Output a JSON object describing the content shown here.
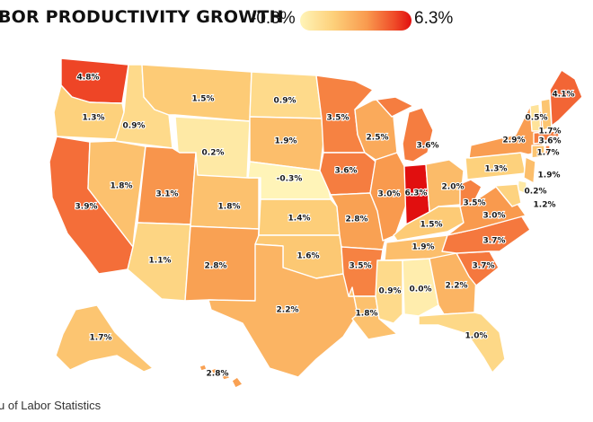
{
  "title": "BOR PRODUCTIVITY GROWTH",
  "legend": {
    "min_label": "-0.3%",
    "max_label": "6.3%",
    "min_value": -0.3,
    "max_value": 6.3,
    "colors": [
      "#fff4b8",
      "#fdd07a",
      "#f99a4e",
      "#ef4a28",
      "#e10f0f"
    ]
  },
  "source": "u of Labor Statistics",
  "map_data": {
    "unit": "%",
    "states": [
      {
        "code": "WA",
        "value": 4.8,
        "label": "4.8%"
      },
      {
        "code": "OR",
        "value": 1.3,
        "label": "1.3%"
      },
      {
        "code": "CA",
        "value": 3.9,
        "label": "3.9%"
      },
      {
        "code": "ID",
        "value": 0.9,
        "label": "0.9%"
      },
      {
        "code": "NV",
        "value": 1.8,
        "label": "1.8%"
      },
      {
        "code": "MT",
        "value": 1.5,
        "label": "1.5%"
      },
      {
        "code": "WY",
        "value": 0.2,
        "label": "0.2%"
      },
      {
        "code": "UT",
        "value": 3.1,
        "label": "3.1%"
      },
      {
        "code": "AZ",
        "value": 1.1,
        "label": "1.1%"
      },
      {
        "code": "CO",
        "value": 1.8,
        "label": "1.8%"
      },
      {
        "code": "NM",
        "value": 2.8,
        "label": "2.8%"
      },
      {
        "code": "ND",
        "value": 0.9,
        "label": "0.9%"
      },
      {
        "code": "SD",
        "value": 1.9,
        "label": "1.9%"
      },
      {
        "code": "NE",
        "value": -0.3,
        "label": "-0.3%"
      },
      {
        "code": "KS",
        "value": 1.4,
        "label": "1.4%"
      },
      {
        "code": "OK",
        "value": 1.6,
        "label": "1.6%"
      },
      {
        "code": "TX",
        "value": 2.2,
        "label": "2.2%"
      },
      {
        "code": "MN",
        "value": 3.5,
        "label": "3.5%"
      },
      {
        "code": "IA",
        "value": 3.6,
        "label": "3.6%"
      },
      {
        "code": "MO",
        "value": 2.8,
        "label": "2.8%"
      },
      {
        "code": "AR",
        "value": 3.5,
        "label": "3.5%"
      },
      {
        "code": "LA",
        "value": 1.8,
        "label": "1.8%"
      },
      {
        "code": "WI",
        "value": 2.5,
        "label": "2.5%"
      },
      {
        "code": "IL",
        "value": 3.0,
        "label": "3.0%"
      },
      {
        "code": "MI",
        "value": 3.6,
        "label": "3.6%"
      },
      {
        "code": "IN",
        "value": 6.3,
        "label": "6.3%"
      },
      {
        "code": "OH",
        "value": 2.0,
        "label": "2.0%"
      },
      {
        "code": "KY",
        "value": 1.5,
        "label": "1.5%"
      },
      {
        "code": "TN",
        "value": 1.9,
        "label": "1.9%"
      },
      {
        "code": "MS",
        "value": 0.9,
        "label": "0.9%"
      },
      {
        "code": "AL",
        "value": 0.0,
        "label": "0.0%"
      },
      {
        "code": "GA",
        "value": 2.2,
        "label": "2.2%"
      },
      {
        "code": "FL",
        "value": 1.0,
        "label": "1.0%"
      },
      {
        "code": "SC",
        "value": 3.7,
        "label": "3.7%"
      },
      {
        "code": "NC",
        "value": 3.7,
        "label": "3.7%"
      },
      {
        "code": "VA",
        "value": 3.0,
        "label": "3.0%"
      },
      {
        "code": "WV",
        "value": 3.5,
        "label": "3.5%"
      },
      {
        "code": "PA",
        "value": 1.3,
        "label": "1.3%"
      },
      {
        "code": "NY",
        "value": 2.9,
        "label": "2.9%"
      },
      {
        "code": "NJ",
        "value": 1.9,
        "label": "1.9%"
      },
      {
        "code": "DE",
        "value": 0.2,
        "label": "0.2%"
      },
      {
        "code": "MD",
        "value": 1.2,
        "label": "1.2%"
      },
      {
        "code": "CT",
        "value": 1.7,
        "label": "1.7%"
      },
      {
        "code": "RI",
        "value": 3.6,
        "label": "3.6%"
      },
      {
        "code": "MA",
        "value": 3.6,
        "label": "3.6%"
      },
      {
        "code": "VT",
        "value": 0.5,
        "label": "0.5%"
      },
      {
        "code": "NH",
        "value": 1.7,
        "label": "1.7%"
      },
      {
        "code": "ME",
        "value": 4.1,
        "label": "4.1%"
      },
      {
        "code": "AK",
        "value": 1.7,
        "label": "1.7%"
      },
      {
        "code": "HI",
        "value": 2.8,
        "label": "2.8%"
      }
    ]
  }
}
